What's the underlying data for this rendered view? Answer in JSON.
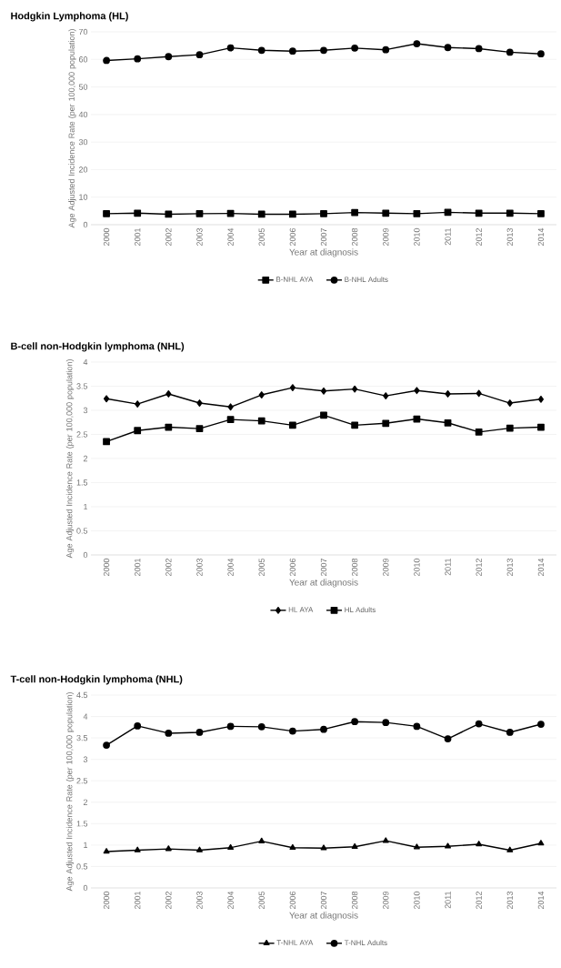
{
  "chart_data": [
    {
      "type": "line",
      "title": "Hodgkin Lymphoma (HL)",
      "xlabel": "Year at diagnosis",
      "ylabel": "Age Adjusted Incidence Rate (per 100,000 population)",
      "categories": [
        "2000",
        "2001",
        "2002",
        "2003",
        "2004",
        "2005",
        "2006",
        "2007",
        "2008",
        "2009",
        "2010",
        "2011",
        "2012",
        "2013",
        "2014"
      ],
      "ylim": [
        0,
        70
      ],
      "yticks": [
        0,
        10,
        20,
        30,
        40,
        50,
        60,
        70
      ],
      "grid": "y",
      "legend": "bottom",
      "line_style": "solid",
      "series": [
        {
          "name": "B-NHL AYA",
          "color": "#000000",
          "marker": "square",
          "values": [
            4.0,
            4.2,
            3.8,
            4.0,
            4.1,
            3.8,
            3.8,
            4.0,
            4.4,
            4.2,
            4.0,
            4.5,
            4.2,
            4.2,
            4.0
          ]
        },
        {
          "name": "B-NHL Adults",
          "color": "#000000",
          "marker": "circle",
          "values": [
            59.6,
            60.2,
            61.0,
            61.7,
            64.2,
            63.3,
            63.0,
            63.3,
            64.1,
            63.5,
            65.7,
            64.3,
            63.9,
            62.6,
            62.0
          ]
        }
      ]
    },
    {
      "type": "line",
      "title": "B-cell non-Hodgkin lymphoma (NHL)",
      "xlabel": "Year at diagnosis",
      "ylabel": "Age Adjusted Incidence Rate (per 100,000 population)",
      "categories": [
        "2000",
        "2001",
        "2002",
        "2003",
        "2004",
        "2005",
        "2006",
        "2007",
        "2008",
        "2009",
        "2010",
        "2011",
        "2012",
        "2013",
        "2014"
      ],
      "ylim": [
        0,
        4
      ],
      "yticks": [
        0,
        0.5,
        1,
        1.5,
        2,
        2.5,
        3,
        3.5,
        4
      ],
      "grid": "y",
      "legend": "bottom",
      "line_style": "solid",
      "series": [
        {
          "name": "HL AYA",
          "color": "#000000",
          "marker": "diamond",
          "values": [
            3.24,
            3.13,
            3.34,
            3.15,
            3.07,
            3.32,
            3.47,
            3.4,
            3.44,
            3.3,
            3.41,
            3.34,
            3.35,
            3.15,
            3.23
          ]
        },
        {
          "name": "HL Adults",
          "color": "#000000",
          "marker": "square",
          "values": [
            2.35,
            2.58,
            2.65,
            2.62,
            2.81,
            2.78,
            2.69,
            2.9,
            2.69,
            2.73,
            2.82,
            2.74,
            2.55,
            2.63,
            2.65
          ]
        }
      ]
    },
    {
      "type": "line",
      "title": "T-cell non-Hodgkin lymphoma (NHL)",
      "xlabel": "Year at diagnosis",
      "ylabel": "Age Adjusted Incidence Rate (per 100,000 population)",
      "categories": [
        "2000",
        "2001",
        "2002",
        "2003",
        "2004",
        "2005",
        "2006",
        "2007",
        "2008",
        "2009",
        "2010",
        "2011",
        "2012",
        "2013",
        "2014"
      ],
      "ylim": [
        0,
        4.5
      ],
      "yticks": [
        0,
        0.5,
        1,
        1.5,
        2,
        2.5,
        3,
        3.5,
        4,
        4.5
      ],
      "grid": "y",
      "legend": "bottom",
      "line_style": "solid",
      "series": [
        {
          "name": "T-NHL AYA",
          "color": "#000000",
          "marker": "triangle",
          "values": [
            0.85,
            0.88,
            0.91,
            0.88,
            0.94,
            1.09,
            0.94,
            0.93,
            0.96,
            1.1,
            0.95,
            0.97,
            1.02,
            0.88,
            1.04
          ]
        },
        {
          "name": "T-NHL Adults",
          "color": "#000000",
          "marker": "circle",
          "values": [
            3.33,
            3.78,
            3.61,
            3.63,
            3.77,
            3.76,
            3.66,
            3.7,
            3.88,
            3.86,
            3.77,
            3.48,
            3.83,
            3.63,
            3.82
          ]
        }
      ]
    }
  ]
}
